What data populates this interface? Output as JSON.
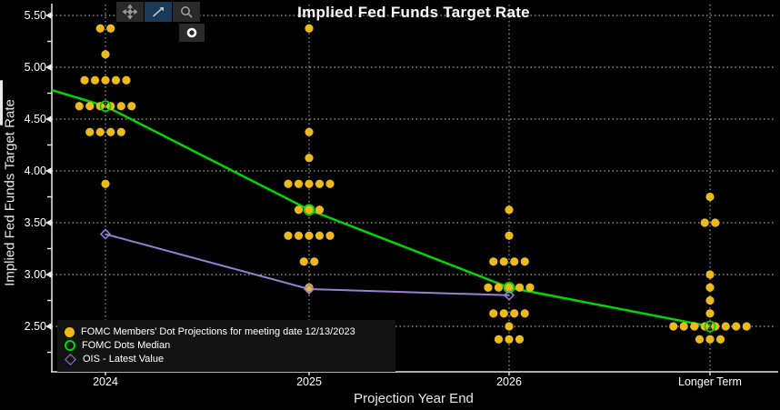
{
  "title": "Implied Fed Funds Target Rate",
  "axes": {
    "y": {
      "title": "Implied Fed Funds Target Rate",
      "ticks": [
        5.5,
        5.0,
        4.5,
        4.0,
        3.5,
        3.0,
        2.5
      ],
      "tick_labels": [
        "5.50",
        "5.00",
        "4.50",
        "4.00",
        "3.50",
        "3.00",
        "2.50"
      ],
      "minor_ticks": [
        5.25,
        4.75,
        4.25,
        3.75,
        3.25,
        2.75,
        2.25
      ],
      "range": [
        2.06,
        5.61
      ],
      "grid": "dotted"
    },
    "x": {
      "title": "Projection Year End",
      "categories": [
        "2024",
        "2025",
        "2026",
        "Longer Term"
      ],
      "grid": "dotted-vertical"
    }
  },
  "legend": {
    "position": "bottom-left",
    "items": [
      {
        "marker": "filled-circle",
        "color": "#edba1c",
        "label": "FOMC Members' Dot Projections for meeting date 12/13/2023"
      },
      {
        "marker": "open-circle",
        "color": "#00d900",
        "label": "FOMC Dots Median"
      },
      {
        "marker": "open-diamond",
        "color": "#9a7fd5",
        "label": "OIS - Latest Value"
      }
    ]
  },
  "toolbar": {
    "buttons": [
      {
        "name": "move-tool",
        "active": false
      },
      {
        "name": "draw-line-tool",
        "active": true
      },
      {
        "name": "zoom-tool",
        "active": false
      },
      {
        "name": "annotation-circle-tool",
        "active": false
      }
    ]
  },
  "chart_data": {
    "type": "scatter",
    "title": "Implied Fed Funds Target Rate",
    "xlabel": "Projection Year End",
    "ylabel": "Implied Fed Funds Target Rate",
    "ylim": [
      2.06,
      5.61
    ],
    "categories": [
      "2024",
      "2025",
      "2026",
      "Longer Term"
    ],
    "dot_color": "#edba1c",
    "meeting_date": "12/13/2023",
    "dots": {
      "2024": [
        {
          "rate": 5.375,
          "count": 2
        },
        {
          "rate": 5.125,
          "count": 1
        },
        {
          "rate": 4.875,
          "count": 5
        },
        {
          "rate": 4.625,
          "count": 6
        },
        {
          "rate": 4.375,
          "count": 4
        },
        {
          "rate": 3.875,
          "count": 1
        }
      ],
      "2025": [
        {
          "rate": 5.375,
          "count": 1
        },
        {
          "rate": 4.375,
          "count": 1
        },
        {
          "rate": 4.125,
          "count": 1
        },
        {
          "rate": 3.875,
          "count": 5
        },
        {
          "rate": 3.625,
          "count": 3
        },
        {
          "rate": 3.375,
          "count": 5
        },
        {
          "rate": 3.125,
          "count": 2
        },
        {
          "rate": 2.875,
          "count": 1
        }
      ],
      "2026": [
        {
          "rate": 3.625,
          "count": 1
        },
        {
          "rate": 3.375,
          "count": 1
        },
        {
          "rate": 3.125,
          "count": 4
        },
        {
          "rate": 2.875,
          "count": 5
        },
        {
          "rate": 2.625,
          "count": 4
        },
        {
          "rate": 2.5,
          "count": 1
        },
        {
          "rate": 2.375,
          "count": 3
        }
      ],
      "Longer Term": [
        {
          "rate": 3.75,
          "count": 1
        },
        {
          "rate": 3.5,
          "count": 2
        },
        {
          "rate": 3.0,
          "count": 1
        },
        {
          "rate": 2.875,
          "count": 1
        },
        {
          "rate": 2.75,
          "count": 1
        },
        {
          "rate": 2.625,
          "count": 1
        },
        {
          "rate": 2.5,
          "count": 8
        },
        {
          "rate": 2.375,
          "count": 3
        }
      ]
    },
    "series": [
      {
        "name": "FOMC Dots Median",
        "type": "line",
        "color": "#00d900",
        "marker": "open-circle",
        "edge_start_value": 4.78,
        "values": {
          "2024": 4.625,
          "2025": 3.625,
          "2026": 2.875,
          "Longer Term": 2.5
        }
      },
      {
        "name": "OIS - Latest Value",
        "type": "line",
        "color": "#9a7fd5",
        "marker": "open-diamond",
        "values": {
          "2024": 3.39,
          "2025": 2.86,
          "2026": 2.8
        }
      }
    ]
  }
}
